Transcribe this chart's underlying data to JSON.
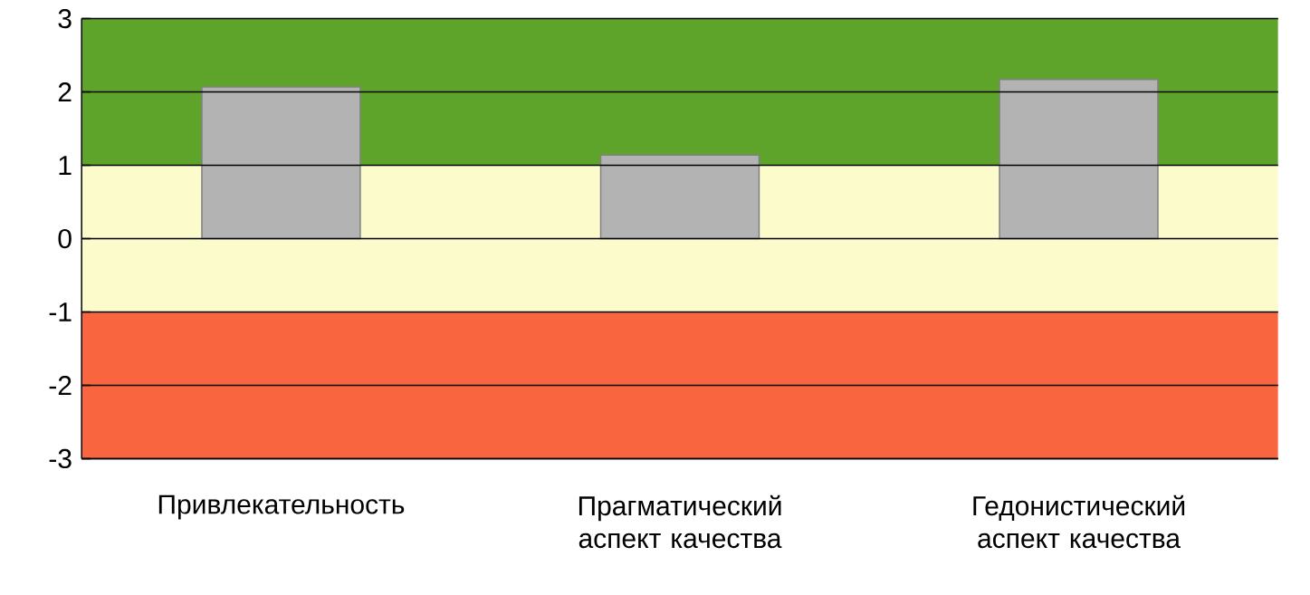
{
  "chart_data": {
    "type": "bar",
    "categories": [
      "Привлекательность",
      "Прагматический аспект качества",
      "Гедонистический аспект качества"
    ],
    "values": [
      2.07,
      1.14,
      2.17
    ],
    "color": "#b3b3b3",
    "ylim": [
      -3,
      3
    ],
    "yticks": [
      -3,
      -2,
      -1,
      0,
      1,
      2,
      3
    ],
    "grid": "y",
    "bands": [
      {
        "axis": "y",
        "from": 1,
        "to": 3,
        "color": "#5ea42a"
      },
      {
        "axis": "y",
        "from": -1,
        "to": 1,
        "color": "#fbfbcc"
      },
      {
        "axis": "y",
        "from": -3,
        "to": -1,
        "color": "#f9653f"
      }
    ]
  }
}
